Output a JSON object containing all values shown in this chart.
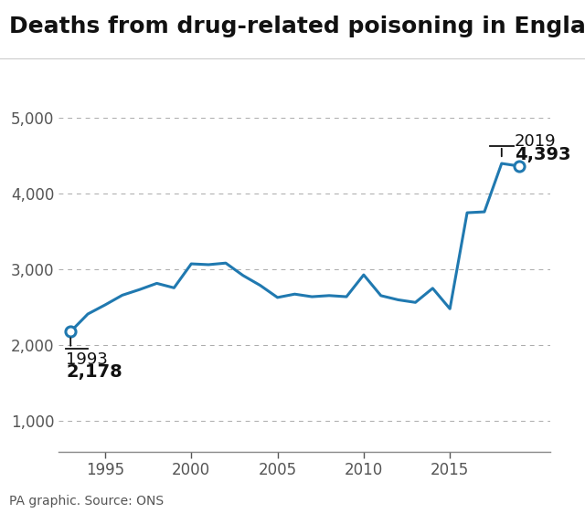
{
  "title": "Deaths from drug-related poisoning in England & Wales",
  "source": "PA graphic. Source: ONS",
  "years": [
    1993,
    1994,
    1995,
    1996,
    1997,
    1998,
    1999,
    2000,
    2001,
    2002,
    2003,
    2004,
    2005,
    2006,
    2007,
    2008,
    2009,
    2010,
    2011,
    2012,
    2013,
    2014,
    2015,
    2016,
    2017,
    2018,
    2019
  ],
  "values": [
    2178,
    2410,
    2530,
    2658,
    2732,
    2814,
    2755,
    3071,
    3060,
    3081,
    2918,
    2787,
    2628,
    2672,
    2638,
    2653,
    2638,
    2926,
    2652,
    2597,
    2563,
    2749,
    2479,
    3744,
    3756,
    4393,
    4359
  ],
  "line_color": "#2079b0",
  "marker_color": "#2079b0",
  "bg_color": "#ffffff",
  "grid_color": "#aaaaaa",
  "yticks": [
    1000,
    2000,
    3000,
    4000,
    5000
  ],
  "ylim": [
    600,
    5600
  ],
  "xlim_start": 1992.3,
  "xlim_end": 2020.8,
  "xtick_years": [
    1995,
    2000,
    2005,
    2010,
    2015
  ],
  "title_fontsize": 18,
  "tick_fontsize": 12,
  "annotation_fontsize": 13,
  "source_fontsize": 10
}
